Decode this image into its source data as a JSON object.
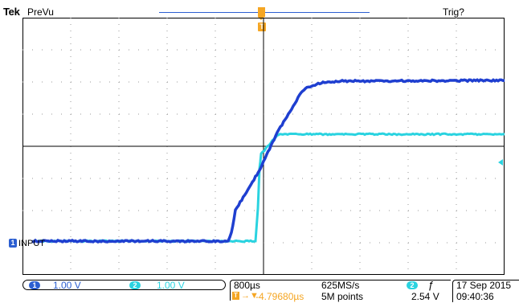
{
  "header": {
    "brand": "Tek",
    "mode": "PreVu",
    "trigger_status": "Trig?",
    "trigger_position_marker": "T"
  },
  "channels": [
    {
      "number": "1",
      "label": "INPUT",
      "scale": "1.00 V",
      "color": "#2c5fd1"
    },
    {
      "number": "2",
      "label": "",
      "scale": "1.00 V",
      "color": "#2ad3e0"
    }
  ],
  "status": {
    "timebase": "800µs",
    "sample_rate": "625MS/s",
    "trigger_channel": "2",
    "trigger_slope_icon": "rising-edge-icon",
    "trigger_slope_glyph": "ƒ",
    "delay_marker": "T",
    "delay_arrow": "→▼",
    "delay": "-4.79680µs",
    "record_length": "5M points",
    "trigger_level": "2.54 V",
    "date": "17 Sep  2015",
    "time": "09:40:36"
  },
  "colors": {
    "ch1": "#2c5fd1",
    "ch2": "#2ad3e0",
    "trigger": "#f5a623",
    "grid": "#000000"
  }
}
